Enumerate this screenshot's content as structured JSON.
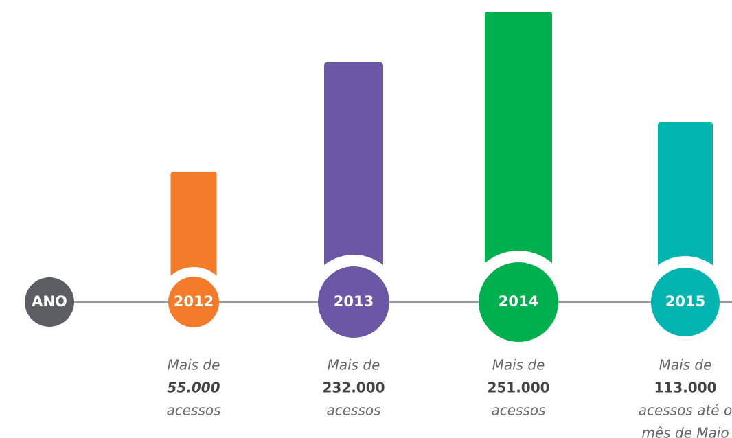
{
  "axis_label": "ANO",
  "items": [
    {
      "year": "2012",
      "prefix": "Mais de",
      "amount": "55.000",
      "suffix": [
        "acessos"
      ]
    },
    {
      "year": "2013",
      "prefix": "Mais de",
      "amount": "232.000",
      "suffix": [
        "acessos"
      ]
    },
    {
      "year": "2014",
      "prefix": "Mais de",
      "amount": "251.000",
      "suffix": [
        "acessos"
      ]
    },
    {
      "year": "2015",
      "prefix": "Mais de",
      "amount": "113.000",
      "suffix": [
        "acessos até o",
        "mês de Maio"
      ]
    }
  ]
}
